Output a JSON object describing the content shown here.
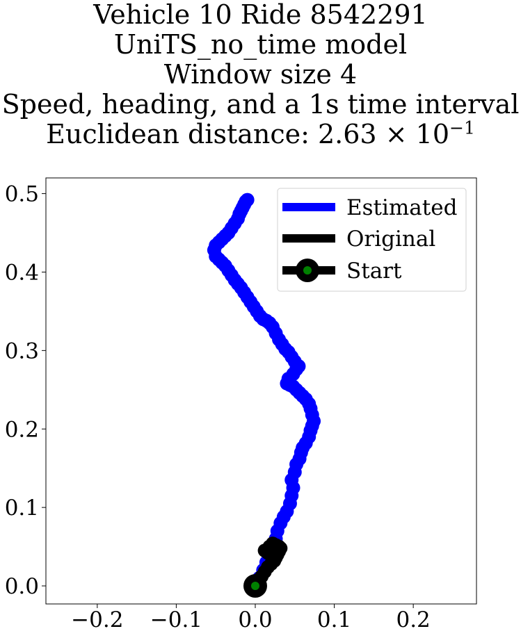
{
  "chart_data": {
    "type": "line",
    "title_lines": [
      "Vehicle 10 Ride 8542291",
      "UniTS_no_time model",
      "Window size 4",
      "Speed, heading, and a 1s time interval"
    ],
    "distance_label": "Euclidean distance: ",
    "distance_mantissa": "2.63",
    "distance_times": "×",
    "distance_base": "10",
    "distance_exponent": "−1",
    "xlabel": "",
    "ylabel": "",
    "xlim": [
      -0.265,
      0.28
    ],
    "ylim": [
      -0.023,
      0.52
    ],
    "x_ticks": [
      {
        "value": -0.2,
        "label": "−0.2"
      },
      {
        "value": -0.1,
        "label": "−0.1"
      },
      {
        "value": 0.0,
        "label": "0.0"
      },
      {
        "value": 0.1,
        "label": "0.1"
      },
      {
        "value": 0.2,
        "label": "0.2"
      }
    ],
    "y_ticks": [
      {
        "value": 0.0,
        "label": "0.0"
      },
      {
        "value": 0.1,
        "label": "0.1"
      },
      {
        "value": 0.2,
        "label": "0.2"
      },
      {
        "value": 0.3,
        "label": "0.3"
      },
      {
        "value": 0.4,
        "label": "0.4"
      },
      {
        "value": 0.5,
        "label": "0.5"
      }
    ],
    "grid": false,
    "legend_position": "top-right",
    "series": [
      {
        "name": "Estimated",
        "color": "#0000ff",
        "x": [
          0.0,
          0.005,
          0.01,
          0.014,
          0.018,
          0.022,
          0.026,
          0.028,
          0.032,
          0.036,
          0.04,
          0.044,
          0.046,
          0.048,
          0.046,
          0.05,
          0.052,
          0.056,
          0.058,
          0.06,
          0.064,
          0.068,
          0.07,
          0.072,
          0.074,
          0.072,
          0.07,
          0.068,
          0.064,
          0.06,
          0.056,
          0.052,
          0.048,
          0.044,
          0.04,
          0.042,
          0.048,
          0.052,
          0.055,
          0.05,
          0.046,
          0.042,
          0.038,
          0.034,
          0.03,
          0.026,
          0.022,
          0.018,
          0.014,
          0.01,
          0.006,
          0.002,
          -0.002,
          -0.006,
          -0.01,
          -0.014,
          -0.018,
          -0.022,
          -0.026,
          -0.03,
          -0.034,
          -0.038,
          -0.042,
          -0.046,
          -0.05,
          -0.052,
          -0.05,
          -0.046,
          -0.042,
          -0.038,
          -0.034,
          -0.03,
          -0.026,
          -0.022,
          -0.02,
          -0.018,
          -0.016,
          -0.014,
          -0.012,
          -0.01
        ],
        "y": [
          0.0,
          0.01,
          0.02,
          0.03,
          0.04,
          0.05,
          0.06,
          0.07,
          0.08,
          0.088,
          0.095,
          0.105,
          0.115,
          0.125,
          0.135,
          0.145,
          0.155,
          0.162,
          0.17,
          0.176,
          0.182,
          0.19,
          0.198,
          0.204,
          0.21,
          0.218,
          0.226,
          0.232,
          0.238,
          0.242,
          0.246,
          0.25,
          0.254,
          0.256,
          0.258,
          0.264,
          0.27,
          0.276,
          0.28,
          0.286,
          0.292,
          0.298,
          0.302,
          0.308,
          0.314,
          0.322,
          0.33,
          0.335,
          0.338,
          0.34,
          0.344,
          0.35,
          0.356,
          0.362,
          0.368,
          0.374,
          0.38,
          0.385,
          0.39,
          0.396,
          0.402,
          0.408,
          0.412,
          0.416,
          0.42,
          0.428,
          0.434,
          0.438,
          0.442,
          0.446,
          0.45,
          0.456,
          0.462,
          0.468,
          0.474,
          0.478,
          0.482,
          0.486,
          0.49,
          0.492
        ]
      },
      {
        "name": "Original",
        "color": "#000000",
        "x": [
          0.0,
          0.004,
          0.008,
          0.012,
          0.016,
          0.02,
          0.024,
          0.026,
          0.028,
          0.03,
          0.032,
          0.03,
          0.026,
          0.022,
          0.018,
          0.016,
          0.018,
          0.022,
          0.026,
          0.03,
          0.028,
          0.024,
          0.02,
          0.016,
          0.012
        ],
        "y": [
          0.0,
          0.006,
          0.012,
          0.018,
          0.024,
          0.028,
          0.032,
          0.036,
          0.04,
          0.044,
          0.048,
          0.05,
          0.052,
          0.054,
          0.05,
          0.046,
          0.042,
          0.04,
          0.044,
          0.046,
          0.05,
          0.048,
          0.044,
          0.042,
          0.045
        ]
      }
    ],
    "start": {
      "name": "Start",
      "x": 0.0,
      "y": 0.0,
      "color": "#000000",
      "center_color": "#008000"
    }
  }
}
